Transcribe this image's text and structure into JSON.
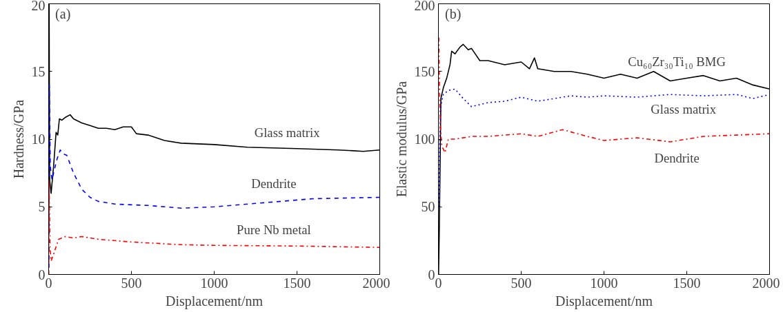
{
  "chart_data": [
    {
      "type": "line",
      "annotations": [
        "(a)"
      ],
      "xlabel": "Displacement/nm",
      "ylabel": "Hardness/GPa",
      "xlim": [
        0,
        2000
      ],
      "ylim": [
        0,
        20
      ],
      "xticks": [
        0,
        500,
        1000,
        1500,
        2000
      ],
      "yticks": [
        0,
        5,
        10,
        15,
        20
      ],
      "grid": false,
      "legend": false,
      "series": [
        {
          "name": "Glass matrix",
          "color": "#000000",
          "line_style": "solid",
          "x": [
            1,
            3,
            6,
            15,
            30,
            45,
            55,
            65,
            80,
            100,
            130,
            150,
            200,
            250,
            300,
            350,
            400,
            450,
            500,
            530,
            600,
            700,
            800,
            1000,
            1200,
            1500,
            1750,
            1900,
            2000
          ],
          "values": [
            3,
            20,
            7,
            6,
            8,
            10.5,
            10.3,
            11.5,
            11.4,
            11.6,
            11.8,
            11.5,
            11.2,
            11,
            10.8,
            10.8,
            10.7,
            10.9,
            10.9,
            10.4,
            10.3,
            9.9,
            9.7,
            9.6,
            9.4,
            9.3,
            9.2,
            9.1,
            9.2
          ]
        },
        {
          "name": "Dendrite",
          "color": "#0000ff",
          "line_style": "dashed",
          "x": [
            2,
            4,
            10,
            20,
            30,
            50,
            70,
            90,
            110,
            150,
            200,
            250,
            300,
            400,
            600,
            800,
            1000,
            1300,
            1600,
            2000
          ],
          "values": [
            0.5,
            14,
            8,
            7,
            7.5,
            8.5,
            9.2,
            8.9,
            8.8,
            7.5,
            6.3,
            5.7,
            5.4,
            5.2,
            5.1,
            4.9,
            5.0,
            5.3,
            5.6,
            5.7
          ]
        },
        {
          "name": "Pure Nb metal",
          "color": "#ff0000",
          "line_style": "dashdot",
          "x": [
            1,
            3,
            8,
            15,
            30,
            60,
            100,
            150,
            200,
            300,
            500,
            800,
            1000,
            1500,
            2000
          ],
          "values": [
            0,
            7,
            2,
            1,
            1.5,
            2.6,
            2.8,
            2.7,
            2.8,
            2.6,
            2.4,
            2.2,
            2.15,
            2.1,
            2.0
          ]
        }
      ]
    },
    {
      "type": "line",
      "annotations": [
        "(b)"
      ],
      "xlabel": "Displacement/nm",
      "ylabel": "Elastic modulus/GPa",
      "xlim": [
        0,
        2000
      ],
      "ylim": [
        0,
        200
      ],
      "xticks": [
        0,
        500,
        1000,
        1500,
        2000
      ],
      "yticks": [
        0,
        50,
        100,
        150,
        200
      ],
      "grid": false,
      "legend": false,
      "series": [
        {
          "name": "Cu₆₀Zr₃₀Ti₁₀ BMG",
          "color": "#000000",
          "line_style": "solid",
          "x": [
            1,
            5,
            10,
            15,
            30,
            50,
            70,
            80,
            100,
            130,
            150,
            180,
            200,
            250,
            300,
            400,
            500,
            550,
            580,
            600,
            700,
            800,
            900,
            1000,
            1100,
            1200,
            1300,
            1400,
            1500,
            1600,
            1700,
            1800,
            1900,
            2000
          ],
          "values": [
            0,
            30,
            80,
            130,
            138,
            145,
            155,
            165,
            163,
            168,
            170,
            166,
            167,
            158,
            158,
            155,
            157,
            152,
            160,
            152,
            150,
            150,
            148,
            145,
            148,
            145,
            150,
            143,
            145,
            147,
            143,
            145,
            140,
            137
          ]
        },
        {
          "name": "Glass matrix",
          "color": "#0000ff",
          "line_style": "dotted",
          "x": [
            3,
            8,
            15,
            30,
            60,
            100,
            150,
            200,
            300,
            400,
            500,
            600,
            700,
            800,
            900,
            1000,
            1200,
            1400,
            1600,
            1800,
            1900,
            2000
          ],
          "values": [
            50,
            100,
            125,
            133,
            136,
            137,
            130,
            124,
            127,
            128,
            131,
            128,
            130,
            132,
            131,
            132,
            131,
            133,
            132,
            133,
            130,
            133
          ]
        },
        {
          "name": "Dendrite",
          "color": "#ff0000",
          "line_style": "dashdot",
          "x": [
            2,
            6,
            12,
            20,
            40,
            60,
            100,
            200,
            300,
            500,
            600,
            750,
            900,
            1000,
            1200,
            1400,
            1600,
            1800,
            2000
          ],
          "values": [
            175,
            140,
            110,
            95,
            90,
            100,
            100,
            102,
            102,
            104,
            102,
            107,
            102,
            99,
            101,
            98,
            102,
            103,
            104
          ]
        }
      ]
    }
  ]
}
